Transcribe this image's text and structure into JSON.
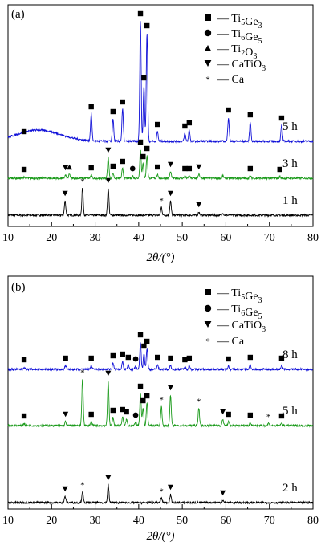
{
  "colors": {
    "black": "#000000",
    "green": "#1a9a1a",
    "blue": "#1010d8"
  },
  "chart_data": [
    {
      "type": "line",
      "panel_label": "(a)",
      "xlabel": "2θ/(°)",
      "xlim": [
        10,
        80
      ],
      "xticks": [
        10,
        20,
        30,
        40,
        50,
        60,
        70,
        80
      ],
      "legend": [
        {
          "marker": "square",
          "label": "Ti5Ge3"
        },
        {
          "marker": "circle",
          "label": "Ti6Ge5"
        },
        {
          "marker": "triangle-up",
          "label": "Ti2O3"
        },
        {
          "marker": "triangle-down",
          "label": "CaTiO3"
        },
        {
          "marker": "star",
          "label": "Ca"
        }
      ],
      "series": [
        {
          "name": "1 h",
          "color": "black",
          "peaks": [
            [
              23.1,
              18
            ],
            [
              27.1,
              34
            ],
            [
              33.0,
              34
            ],
            [
              45.2,
              10
            ],
            [
              47.3,
              18
            ],
            [
              53.8,
              4
            ],
            [
              59.3,
              3
            ]
          ],
          "annotations": [
            {
              "x": 23.1,
              "m": "triangle-down"
            },
            {
              "x": 27.1,
              "m": "star"
            },
            {
              "x": 33.0,
              "m": "triangle-down"
            },
            {
              "x": 45.2,
              "m": "star"
            },
            {
              "x": 47.3,
              "m": "triangle-down"
            },
            {
              "x": 53.8,
              "m": "triangle-down"
            }
          ]
        },
        {
          "name": "3 h",
          "color": "green",
          "peaks": [
            [
              13.7,
              2
            ],
            [
              23.2,
              4
            ],
            [
              24.1,
              5
            ],
            [
              29.1,
              4
            ],
            [
              33.0,
              26
            ],
            [
              34.1,
              6
            ],
            [
              36.3,
              12
            ],
            [
              38.6,
              3
            ],
            [
              40.4,
              36
            ],
            [
              41.0,
              18
            ],
            [
              41.9,
              28
            ],
            [
              44.3,
              5
            ],
            [
              47.3,
              8
            ],
            [
              50.6,
              3
            ],
            [
              51.6,
              3
            ],
            [
              53.8,
              5
            ],
            [
              59.3,
              3
            ],
            [
              65.6,
              3
            ],
            [
              72.4,
              2
            ]
          ],
          "annotations": [
            {
              "x": 13.7,
              "m": "square"
            },
            {
              "x": 23.2,
              "m": "triangle-down"
            },
            {
              "x": 24.1,
              "m": "triangle-up"
            },
            {
              "x": 29.1,
              "m": "square"
            },
            {
              "x": 33.0,
              "m": "triangle-down"
            },
            {
              "x": 34.1,
              "m": "square"
            },
            {
              "x": 36.3,
              "m": "square"
            },
            {
              "x": 38.6,
              "m": "circle"
            },
            {
              "x": 40.4,
              "m": "square"
            },
            {
              "x": 41.0,
              "m": "square"
            },
            {
              "x": 41.9,
              "m": "square"
            },
            {
              "x": 44.3,
              "m": "square"
            },
            {
              "x": 47.3,
              "m": "triangle-down"
            },
            {
              "x": 50.6,
              "m": "square"
            },
            {
              "x": 51.6,
              "m": "square"
            },
            {
              "x": 53.8,
              "m": "triangle-down"
            },
            {
              "x": 65.6,
              "m": "square"
            },
            {
              "x": 72.4,
              "m": "square"
            }
          ]
        },
        {
          "name": "5 h",
          "color": "blue",
          "hump": {
            "center": 17,
            "height": 14,
            "width": 5
          },
          "peaks": [
            [
              13.7,
              3
            ],
            [
              29.1,
              34
            ],
            [
              34.1,
              28
            ],
            [
              36.3,
              40
            ],
            [
              40.4,
              150
            ],
            [
              41.2,
              70
            ],
            [
              41.9,
              135
            ],
            [
              44.3,
              12
            ],
            [
              50.6,
              10
            ],
            [
              51.6,
              14
            ],
            [
              60.6,
              30
            ],
            [
              65.6,
              24
            ],
            [
              72.8,
              20
            ]
          ],
          "annotations": [
            {
              "x": 13.7,
              "m": "square"
            },
            {
              "x": 29.1,
              "m": "square"
            },
            {
              "x": 34.1,
              "m": "square"
            },
            {
              "x": 36.3,
              "m": "square"
            },
            {
              "x": 40.4,
              "m": "square"
            },
            {
              "x": 41.2,
              "m": "square"
            },
            {
              "x": 41.9,
              "m": "square"
            },
            {
              "x": 44.3,
              "m": "square"
            },
            {
              "x": 50.6,
              "m": "square"
            },
            {
              "x": 51.6,
              "m": "square"
            },
            {
              "x": 60.6,
              "m": "square"
            },
            {
              "x": 65.6,
              "m": "square"
            },
            {
              "x": 72.8,
              "m": "square"
            }
          ]
        }
      ]
    },
    {
      "type": "line",
      "panel_label": "(b)",
      "xlabel": "2θ/(°)",
      "xlim": [
        10,
        80
      ],
      "xticks": [
        10,
        20,
        30,
        40,
        50,
        60,
        70,
        80
      ],
      "legend": [
        {
          "marker": "square",
          "label": "Ti5Ge3"
        },
        {
          "marker": "circle",
          "label": "Ti6Ge5"
        },
        {
          "marker": "triangle-down",
          "label": "CaTiO3"
        },
        {
          "marker": "star",
          "label": "Ca"
        }
      ],
      "series": [
        {
          "name": "2 h",
          "color": "black",
          "peaks": [
            [
              23.1,
              8
            ],
            [
              27.1,
              14
            ],
            [
              33.0,
              22
            ],
            [
              45.2,
              6
            ],
            [
              47.3,
              10
            ],
            [
              59.3,
              3
            ]
          ],
          "annotations": [
            {
              "x": 23.1,
              "m": "triangle-down"
            },
            {
              "x": 27.1,
              "m": "star"
            },
            {
              "x": 33.0,
              "m": "triangle-down"
            },
            {
              "x": 45.2,
              "m": "star"
            },
            {
              "x": 47.3,
              "m": "triangle-down"
            },
            {
              "x": 59.3,
              "m": "triangle-down"
            }
          ]
        },
        {
          "name": "5 h",
          "color": "green",
          "peaks": [
            [
              13.7,
              3
            ],
            [
              23.2,
              5
            ],
            [
              27.1,
              58
            ],
            [
              29.1,
              5
            ],
            [
              33.0,
              56
            ],
            [
              34.1,
              10
            ],
            [
              36.3,
              11
            ],
            [
              37.2,
              8
            ],
            [
              39.3,
              4
            ],
            [
              40.4,
              40
            ],
            [
              41.0,
              22
            ],
            [
              41.9,
              28
            ],
            [
              45.2,
              24
            ],
            [
              47.3,
              38
            ],
            [
              53.8,
              22
            ],
            [
              59.3,
              8
            ],
            [
              60.6,
              5
            ],
            [
              65.6,
              4
            ],
            [
              69.8,
              3
            ],
            [
              72.8,
              3
            ]
          ],
          "annotations": [
            {
              "x": 13.7,
              "m": "square"
            },
            {
              "x": 23.2,
              "m": "triangle-down"
            },
            {
              "x": 27.1,
              "m": "star"
            },
            {
              "x": 29.1,
              "m": "square"
            },
            {
              "x": 33.0,
              "m": "triangle-down"
            },
            {
              "x": 34.1,
              "m": "square"
            },
            {
              "x": 36.3,
              "m": "square"
            },
            {
              "x": 37.2,
              "m": "square"
            },
            {
              "x": 39.3,
              "m": "circle"
            },
            {
              "x": 40.4,
              "m": "square"
            },
            {
              "x": 41.0,
              "m": "square"
            },
            {
              "x": 41.9,
              "m": "square"
            },
            {
              "x": 45.2,
              "m": "star"
            },
            {
              "x": 47.3,
              "m": "triangle-down"
            },
            {
              "x": 53.8,
              "m": "star"
            },
            {
              "x": 59.3,
              "m": "triangle-down"
            },
            {
              "x": 60.6,
              "m": "square"
            },
            {
              "x": 65.6,
              "m": "square"
            },
            {
              "x": 69.8,
              "m": "star"
            },
            {
              "x": 72.8,
              "m": "square"
            }
          ]
        },
        {
          "name": "8 h",
          "color": "blue",
          "peaks": [
            [
              13.7,
              3
            ],
            [
              23.2,
              5
            ],
            [
              29.1,
              5
            ],
            [
              34.1,
              8
            ],
            [
              36.3,
              10
            ],
            [
              37.6,
              6
            ],
            [
              39.3,
              4
            ],
            [
              40.4,
              34
            ],
            [
              41.2,
              20
            ],
            [
              41.9,
              26
            ],
            [
              44.3,
              6
            ],
            [
              47.3,
              5
            ],
            [
              50.6,
              3
            ],
            [
              51.6,
              5
            ],
            [
              60.6,
              4
            ],
            [
              65.6,
              6
            ],
            [
              72.8,
              5
            ]
          ],
          "annotations": [
            {
              "x": 13.7,
              "m": "square"
            },
            {
              "x": 23.2,
              "m": "square"
            },
            {
              "x": 29.1,
              "m": "square"
            },
            {
              "x": 34.1,
              "m": "square"
            },
            {
              "x": 36.3,
              "m": "square"
            },
            {
              "x": 37.6,
              "m": "square"
            },
            {
              "x": 39.3,
              "m": "circle"
            },
            {
              "x": 40.4,
              "m": "square"
            },
            {
              "x": 41.2,
              "m": "square"
            },
            {
              "x": 41.9,
              "m": "square"
            },
            {
              "x": 44.3,
              "m": "square"
            },
            {
              "x": 47.3,
              "m": "square"
            },
            {
              "x": 50.6,
              "m": "square"
            },
            {
              "x": 51.6,
              "m": "square"
            },
            {
              "x": 60.6,
              "m": "square"
            },
            {
              "x": 65.6,
              "m": "square"
            },
            {
              "x": 72.8,
              "m": "square"
            }
          ]
        }
      ]
    }
  ]
}
